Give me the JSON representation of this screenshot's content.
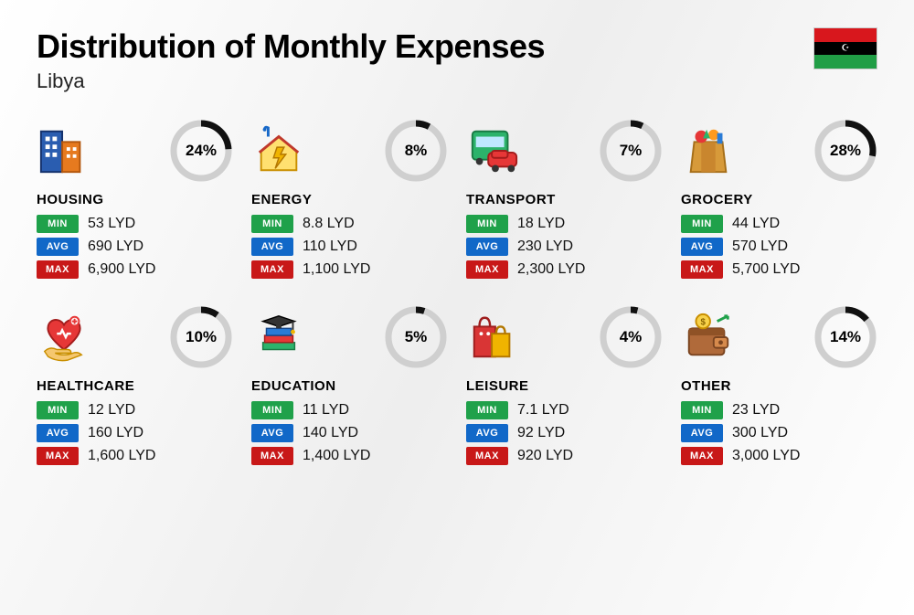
{
  "header": {
    "title": "Distribution of Monthly Expenses",
    "country": "Libya",
    "flag": {
      "stripes": [
        "#d8171d",
        "#000000",
        "#219e46"
      ],
      "emblem_color": "#ffffff"
    }
  },
  "labels": {
    "min": "MIN",
    "avg": "AVG",
    "max": "MAX"
  },
  "donut": {
    "track_color": "#cfcfcf",
    "fill_color": "#111111",
    "stroke_width": 7,
    "radius": 30
  },
  "badge_colors": {
    "min": "#1fa14a",
    "avg": "#1168c8",
    "max": "#c81818"
  },
  "categories": [
    {
      "key": "housing",
      "name": "HOUSING",
      "pct": 24,
      "min": "53 LYD",
      "avg": "690 LYD",
      "max": "6,900 LYD",
      "icon": "buildings"
    },
    {
      "key": "energy",
      "name": "ENERGY",
      "pct": 8,
      "min": "8.8 LYD",
      "avg": "110 LYD",
      "max": "1,100 LYD",
      "icon": "energy-house"
    },
    {
      "key": "transport",
      "name": "TRANSPORT",
      "pct": 7,
      "min": "18 LYD",
      "avg": "230 LYD",
      "max": "2,300 LYD",
      "icon": "bus-car"
    },
    {
      "key": "grocery",
      "name": "GROCERY",
      "pct": 28,
      "min": "44 LYD",
      "avg": "570 LYD",
      "max": "5,700 LYD",
      "icon": "grocery-bag"
    },
    {
      "key": "healthcare",
      "name": "HEALTHCARE",
      "pct": 10,
      "min": "12 LYD",
      "avg": "160 LYD",
      "max": "1,600 LYD",
      "icon": "heart-hand"
    },
    {
      "key": "education",
      "name": "EDUCATION",
      "pct": 5,
      "min": "11 LYD",
      "avg": "140 LYD",
      "max": "1,400 LYD",
      "icon": "grad-books"
    },
    {
      "key": "leisure",
      "name": "LEISURE",
      "pct": 4,
      "min": "7.1 LYD",
      "avg": "92 LYD",
      "max": "920 LYD",
      "icon": "shopping-bags"
    },
    {
      "key": "other",
      "name": "OTHER",
      "pct": 14,
      "min": "23 LYD",
      "avg": "300 LYD",
      "max": "3,000 LYD",
      "icon": "wallet"
    }
  ]
}
